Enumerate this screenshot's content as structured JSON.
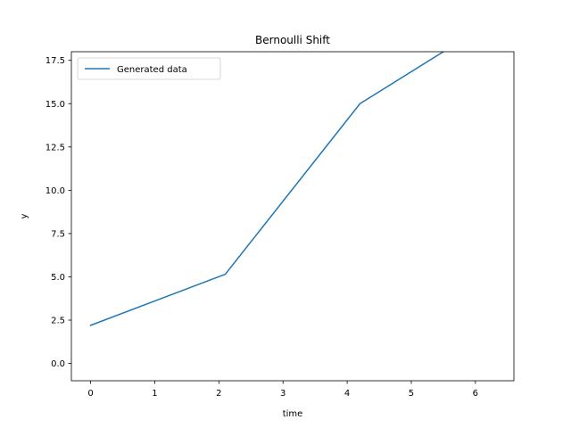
{
  "chart_data": {
    "type": "line",
    "title": "Bernoulli Shift",
    "xlabel": "time",
    "ylabel": "y",
    "xlim": [
      -0.3,
      6.6
    ],
    "ylim": [
      -1.0,
      18.0
    ],
    "xticks": [
      0,
      1,
      2,
      3,
      4,
      5,
      6
    ],
    "xtick_labels": [
      "0",
      "1",
      "2",
      "3",
      "4",
      "5",
      "6"
    ],
    "yticks": [
      0.0,
      2.5,
      5.0,
      7.5,
      10.0,
      12.5,
      15.0,
      17.5
    ],
    "ytick_labels": [
      "0.0",
      "2.5",
      "5.0",
      "7.5",
      "10.0",
      "12.5",
      "15.0",
      "17.5"
    ],
    "grid": false,
    "legend_position": "top-left",
    "series": [
      {
        "name": "Generated data",
        "color": "#1f77b4",
        "x": [
          0,
          2.1,
          4.2,
          5.5
        ],
        "y": [
          2.2,
          5.15,
          15.0,
          18.0
        ]
      }
    ]
  }
}
